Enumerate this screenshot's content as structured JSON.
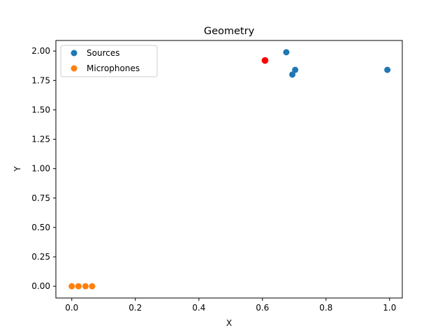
{
  "chart_data": {
    "type": "scatter",
    "title": "Geometry",
    "xlabel": "X",
    "ylabel": "Y",
    "xlim": [
      -0.05,
      1.04
    ],
    "ylim": [
      -0.1,
      2.09
    ],
    "xticks": [
      0.0,
      0.2,
      0.4,
      0.6,
      0.8,
      1.0
    ],
    "xtick_labels": [
      "0.0",
      "0.2",
      "0.4",
      "0.6",
      "0.8",
      "1.0"
    ],
    "yticks": [
      0.0,
      0.25,
      0.5,
      0.75,
      1.0,
      1.25,
      1.5,
      1.75,
      2.0
    ],
    "ytick_labels": [
      "0.00",
      "0.25",
      "0.50",
      "0.75",
      "1.00",
      "1.25",
      "1.50",
      "1.75",
      "2.00"
    ],
    "grid": false,
    "legend_position": "top-left",
    "series": [
      {
        "name": "Sources",
        "color": "#1f77b4",
        "points": [
          {
            "x": 0.675,
            "y": 1.99
          },
          {
            "x": 0.703,
            "y": 1.84
          },
          {
            "x": 0.694,
            "y": 1.8
          },
          {
            "x": 0.993,
            "y": 1.84
          }
        ]
      },
      {
        "name": "Microphones",
        "color": "#ff7f0e",
        "points": [
          {
            "x": 0.0,
            "y": 0.0
          },
          {
            "x": 0.021,
            "y": 0.0
          },
          {
            "x": 0.043,
            "y": 0.0
          },
          {
            "x": 0.064,
            "y": 0.0
          }
        ]
      }
    ],
    "highlight_points": [
      {
        "x": 0.608,
        "y": 1.92,
        "color": "#ff0000"
      }
    ]
  }
}
